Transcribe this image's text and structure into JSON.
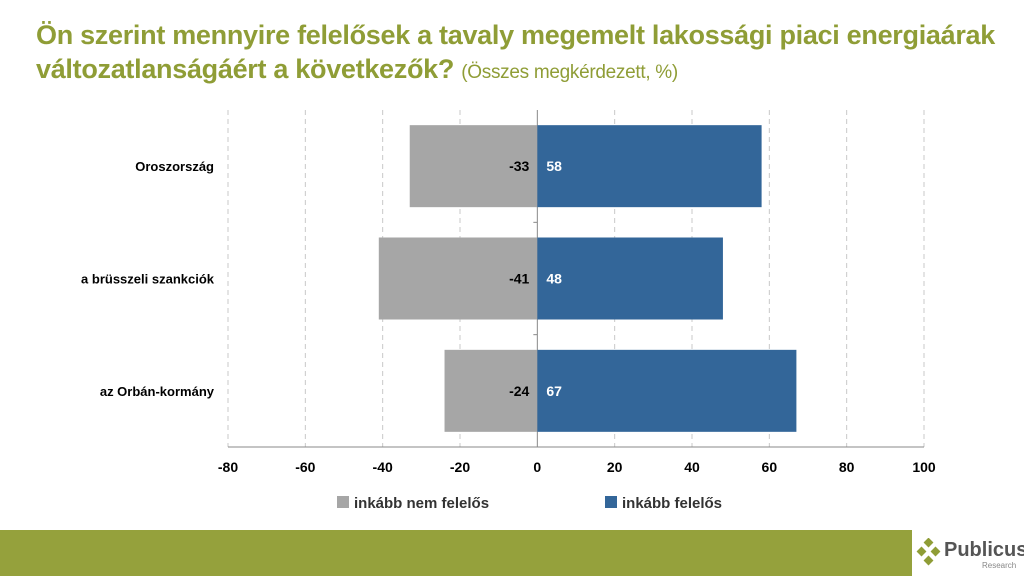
{
  "title": {
    "main": "Ön szerint mennyire felelősek a tavaly megemelt lakossági piaci energiaárak változatlanságáért a következők?",
    "sub": "(Összes megkérdezett, %)"
  },
  "chart_data": {
    "type": "bar",
    "orientation": "horizontal-diverging",
    "categories": [
      "Oroszország",
      "a brüsszeli szankciók",
      "az Orbán-kormány"
    ],
    "series": [
      {
        "name": "inkább nem felelős",
        "color": "#a6a6a6",
        "values": [
          -33,
          -41,
          -24
        ]
      },
      {
        "name": "inkább felelős",
        "color": "#336699",
        "values": [
          58,
          48,
          67
        ]
      }
    ],
    "xlim": [
      -80,
      100
    ],
    "xticks": [
      -80,
      -60,
      -40,
      -20,
      0,
      20,
      40,
      60,
      80,
      100
    ],
    "grid": true,
    "legend": "bottom"
  },
  "logo": {
    "name": "Publicus",
    "sub": "Research"
  }
}
